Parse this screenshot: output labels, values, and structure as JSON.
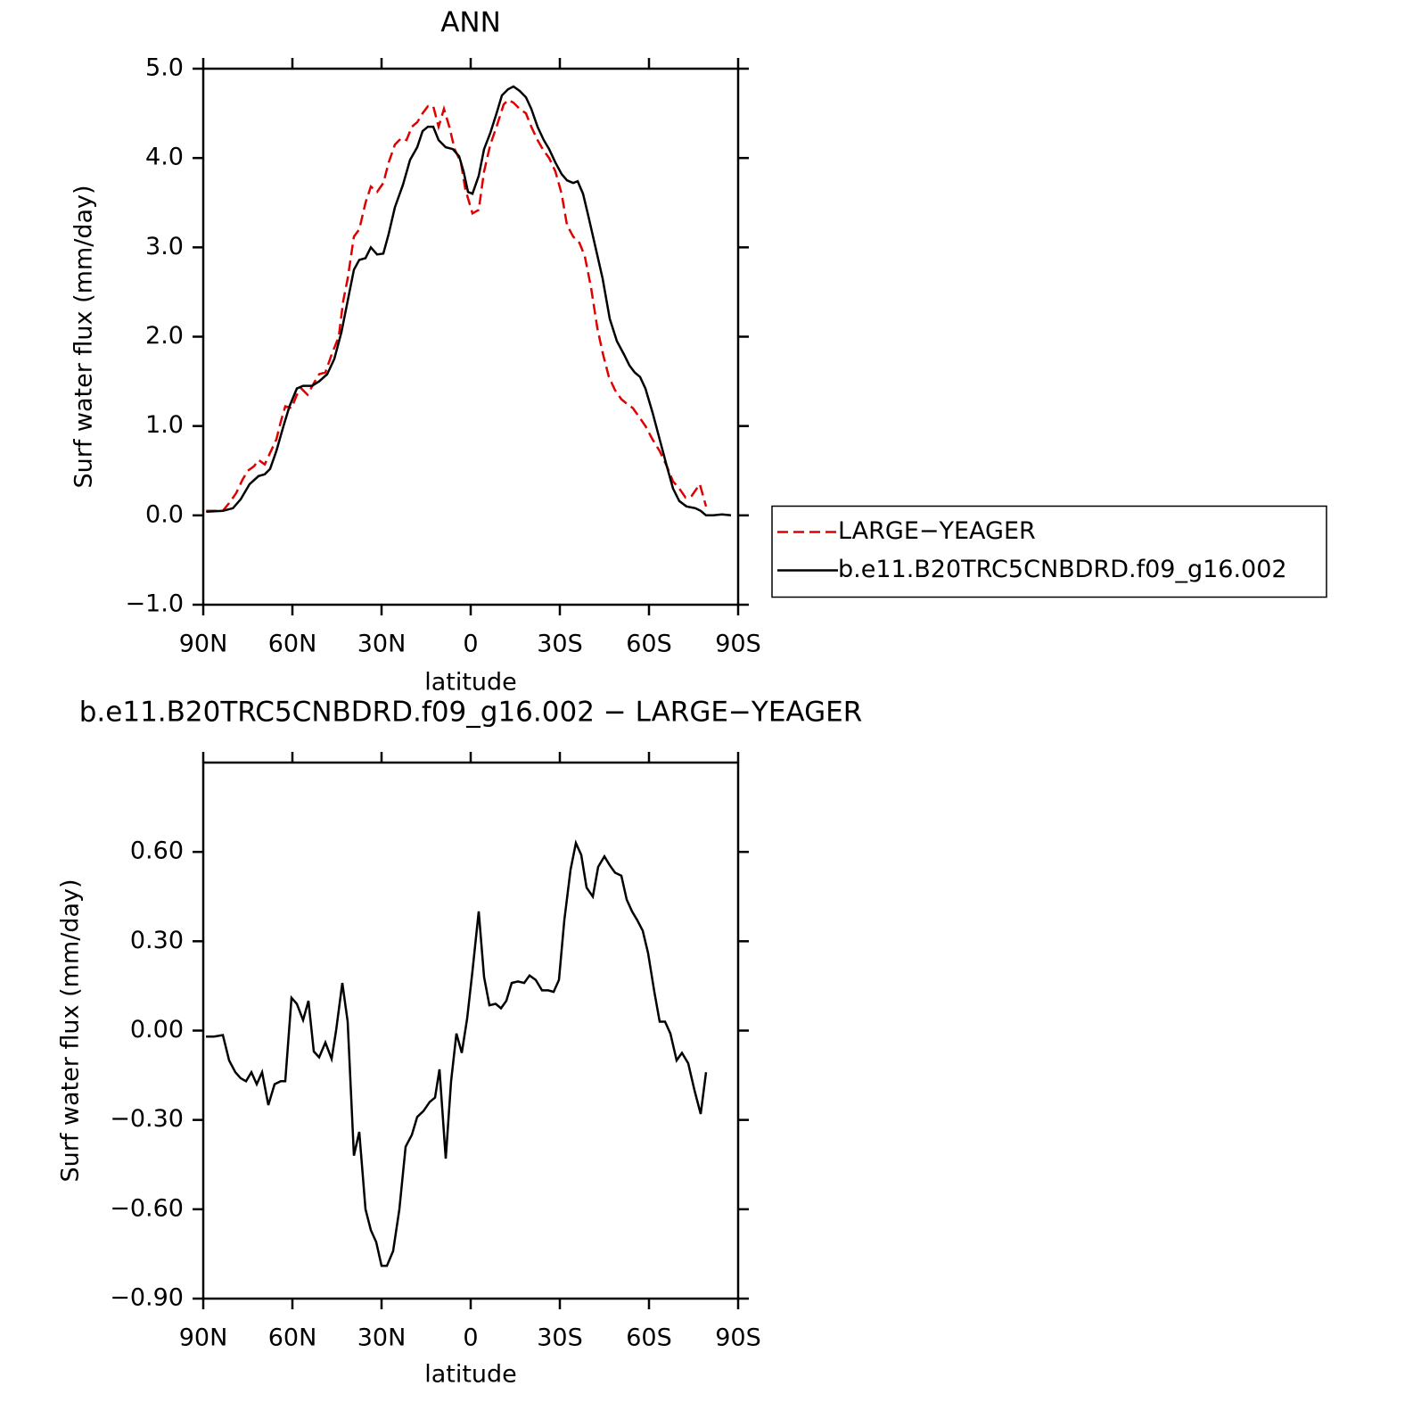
{
  "chart_data": [
    {
      "type": "line",
      "title": "ANN",
      "xlabel": "latitude",
      "ylabel": "Surf water flux (mm/day)",
      "xlim": [
        90,
        -90
      ],
      "xticks": [
        {
          "value": 90,
          "label": "90N"
        },
        {
          "value": 60,
          "label": "60N"
        },
        {
          "value": 30,
          "label": "30N"
        },
        0,
        {
          "value": -30,
          "label": "30S"
        },
        {
          "value": -60,
          "label": "60S"
        },
        {
          "value": -90,
          "label": "90S"
        }
      ],
      "ylim": [
        -1,
        5
      ],
      "yticks": [
        {
          "value": -1,
          "label": "−1.0"
        },
        {
          "value": 0,
          "label": "0.0"
        },
        {
          "value": 1,
          "label": "1.0"
        },
        {
          "value": 2,
          "label": "2.0"
        },
        {
          "value": 3,
          "label": "3.0"
        },
        {
          "value": 4,
          "label": "4.0"
        },
        {
          "value": 5,
          "label": "5.0"
        }
      ],
      "legend": "right",
      "series": [
        {
          "name": "LARGE−YEAGER",
          "color": "#e00000",
          "dashed": true,
          "x": [
            89,
            86.4,
            83.4,
            81,
            78.9,
            76.8,
            75,
            72.9,
            71.4,
            69.3,
            67.5,
            65.4,
            63.9,
            62.4,
            60.3,
            58.5,
            57,
            54.9,
            52.8,
            51,
            48.9,
            46.8,
            44.4,
            42.9,
            41.4,
            39.3,
            37.5,
            35.4,
            33.6,
            31.5,
            29.4,
            27.6,
            25.5,
            23.4,
            21.6,
            19.8,
            18,
            16.2,
            14.4,
            12.6,
            10.8,
            9,
            7.2,
            5.4,
            3.3,
            1.8,
            -0.6,
            -2.7,
            -4.5,
            -6.6,
            -8.7,
            -11.1,
            -12.6,
            -14.4,
            -16.5,
            -18.6,
            -20.4,
            -22.5,
            -24.6,
            -26.4,
            -28.5,
            -30.6,
            -32.4,
            -34.5,
            -36.6,
            -38.4,
            -40.5,
            -42.6,
            -44.4,
            -46.5,
            -48.6,
            -50.7,
            -52.5,
            -54.6,
            -56.7,
            -58.8,
            -61.2,
            -63.6,
            -66,
            -68.1,
            -70.2,
            -72.3,
            -74.4,
            -77.1,
            -79.2
          ],
          "values": [
            0.05,
            0.05,
            0.05,
            0.15,
            0.25,
            0.4,
            0.5,
            0.55,
            0.62,
            0.57,
            0.7,
            0.85,
            1.05,
            1.22,
            1.2,
            1.35,
            1.42,
            1.35,
            1.48,
            1.58,
            1.6,
            1.8,
            2.0,
            2.4,
            2.65,
            3.12,
            3.2,
            3.5,
            3.68,
            3.62,
            3.72,
            3.95,
            4.15,
            4.22,
            4.2,
            4.35,
            4.4,
            4.5,
            4.58,
            4.58,
            4.35,
            4.55,
            4.35,
            4.1,
            3.95,
            3.65,
            3.38,
            3.42,
            3.85,
            4.15,
            4.35,
            4.6,
            4.65,
            4.62,
            4.55,
            4.5,
            4.35,
            4.2,
            4.08,
            4.0,
            3.85,
            3.6,
            3.25,
            3.12,
            3.05,
            2.9,
            2.55,
            2.1,
            1.82,
            1.55,
            1.4,
            1.3,
            1.25,
            1.2,
            1.1,
            1.0,
            0.85,
            0.72,
            0.55,
            0.38,
            0.3,
            0.2,
            0.22,
            0.35,
            0.1
          ]
        },
        {
          "name": "b.e11.B20TRC5CNBDRD.f09_g16.002",
          "color": "#000000",
          "dashed": false,
          "x": [
            89,
            83.4,
            80,
            77.4,
            74.4,
            71.4,
            69.3,
            67.5,
            65.4,
            63,
            61,
            58.5,
            56.4,
            53.4,
            51,
            48.3,
            45.9,
            43.5,
            41.4,
            39.3,
            37.5,
            35.4,
            33.6,
            31.5,
            29.4,
            27.6,
            25.5,
            22.8,
            20.4,
            18,
            16.2,
            14.4,
            12.6,
            10.8,
            8.4,
            6,
            3.9,
            2.4,
            0.9,
            -0.6,
            -2.7,
            -4.5,
            -6.6,
            -8.7,
            -10.5,
            -12.6,
            -14.4,
            -16.5,
            -18.6,
            -20.4,
            -22.5,
            -24.6,
            -26.4,
            -28.5,
            -30.6,
            -32.4,
            -34.5,
            -36,
            -37.8,
            -39.6,
            -42,
            -44.4,
            -46.8,
            -49.2,
            -51.6,
            -53.4,
            -55.2,
            -57,
            -58.8,
            -61.2,
            -63.6,
            -66,
            -68.1,
            -70.2,
            -72.6,
            -75.6,
            -77.4,
            -79.2,
            -81.6,
            -84.6,
            -87.6
          ],
          "values": [
            0.04,
            0.05,
            0.08,
            0.18,
            0.35,
            0.44,
            0.46,
            0.52,
            0.72,
            1.0,
            1.22,
            1.42,
            1.45,
            1.45,
            1.5,
            1.58,
            1.75,
            2.05,
            2.4,
            2.75,
            2.86,
            2.88,
            3.0,
            2.92,
            2.93,
            3.15,
            3.45,
            3.7,
            3.98,
            4.12,
            4.3,
            4.35,
            4.35,
            4.2,
            4.12,
            4.1,
            4.02,
            3.85,
            3.62,
            3.6,
            3.8,
            4.1,
            4.28,
            4.5,
            4.7,
            4.77,
            4.8,
            4.75,
            4.68,
            4.55,
            4.35,
            4.2,
            4.1,
            3.95,
            3.82,
            3.75,
            3.72,
            3.74,
            3.6,
            3.35,
            3.0,
            2.65,
            2.2,
            1.95,
            1.8,
            1.68,
            1.6,
            1.55,
            1.42,
            1.15,
            0.85,
            0.55,
            0.3,
            0.16,
            0.1,
            0.08,
            0.05,
            0.0,
            0.0,
            0.01,
            0.0
          ]
        }
      ]
    },
    {
      "type": "line",
      "title": "b.e11.B20TRC5CNBDRD.f09_g16.002 − LARGE−YEAGER",
      "xlabel": "latitude",
      "ylabel": "Surf water flux (mm/day)",
      "xlim": [
        90,
        -90
      ],
      "xticks": [
        {
          "value": 90,
          "label": "90N"
        },
        {
          "value": 60,
          "label": "60N"
        },
        {
          "value": 30,
          "label": "30N"
        },
        0,
        {
          "value": -30,
          "label": "30S"
        },
        {
          "value": -60,
          "label": "60S"
        },
        {
          "value": -90,
          "label": "90S"
        }
      ],
      "ylim": [
        -0.9,
        0.9
      ],
      "yticks": [
        {
          "value": -0.9,
          "label": "−0.90"
        },
        {
          "value": -0.6,
          "label": "−0.60"
        },
        {
          "value": -0.3,
          "label": "−0.30"
        },
        {
          "value": 0,
          "label": "0.00"
        },
        {
          "value": 0.3,
          "label": "0.30"
        },
        {
          "value": 0.6,
          "label": "0.60"
        }
      ],
      "series": [
        {
          "color": "#000000",
          "dashed": false,
          "x": [
            89.1,
            86.4,
            83.4,
            81.3,
            79.2,
            77.4,
            75.6,
            73.8,
            72,
            70.2,
            68.1,
            66,
            63.9,
            62.4,
            60.3,
            58.5,
            56.4,
            54.6,
            52.8,
            51,
            48.9,
            46.8,
            45.3,
            43.2,
            41.4,
            39.3,
            37.5,
            35.4,
            33.6,
            31.8,
            30,
            28.2,
            26.1,
            24,
            21.9,
            19.8,
            18,
            15.9,
            13.8,
            12,
            10.5,
            8.4,
            6.6,
            4.8,
            3,
            1.2,
            -0.6,
            -2.7,
            -4.5,
            -6.3,
            -8.4,
            -10.2,
            -12,
            -13.8,
            -15.9,
            -18,
            -19.8,
            -21.9,
            -24,
            -26.1,
            -27.9,
            -29.7,
            -31.5,
            -33.6,
            -35.4,
            -37.2,
            -39,
            -41.1,
            -42.9,
            -45,
            -46.8,
            -48.6,
            -50.7,
            -52.5,
            -54.3,
            -56.1,
            -57.9,
            -59.7,
            -61.8,
            -63.6,
            -65.4,
            -67.2,
            -69.3,
            -71.1,
            -73.2,
            -75.3,
            -77.4,
            -79.2
          ],
          "values": [
            -0.02,
            -0.02,
            -0.015,
            -0.1,
            -0.14,
            -0.16,
            -0.17,
            -0.14,
            -0.18,
            -0.14,
            -0.25,
            -0.18,
            -0.17,
            -0.17,
            0.11,
            0.09,
            0.035,
            0.1,
            -0.07,
            -0.09,
            -0.04,
            -0.095,
            0.0,
            0.16,
            0.03,
            -0.42,
            -0.34,
            -0.6,
            -0.67,
            -0.71,
            -0.79,
            -0.79,
            -0.74,
            -0.6,
            -0.39,
            -0.35,
            -0.29,
            -0.27,
            -0.24,
            -0.225,
            -0.13,
            -0.43,
            -0.17,
            -0.01,
            -0.075,
            0.04,
            0.2,
            0.4,
            0.18,
            0.085,
            0.09,
            0.075,
            0.1,
            0.16,
            0.165,
            0.16,
            0.185,
            0.17,
            0.135,
            0.135,
            0.13,
            0.17,
            0.37,
            0.54,
            0.63,
            0.59,
            0.48,
            0.45,
            0.55,
            0.585,
            0.555,
            0.53,
            0.52,
            0.44,
            0.4,
            0.37,
            0.335,
            0.26,
            0.13,
            0.03,
            0.03,
            -0.01,
            -0.1,
            -0.075,
            -0.11,
            -0.2,
            -0.28,
            -0.14
          ]
        }
      ]
    }
  ]
}
